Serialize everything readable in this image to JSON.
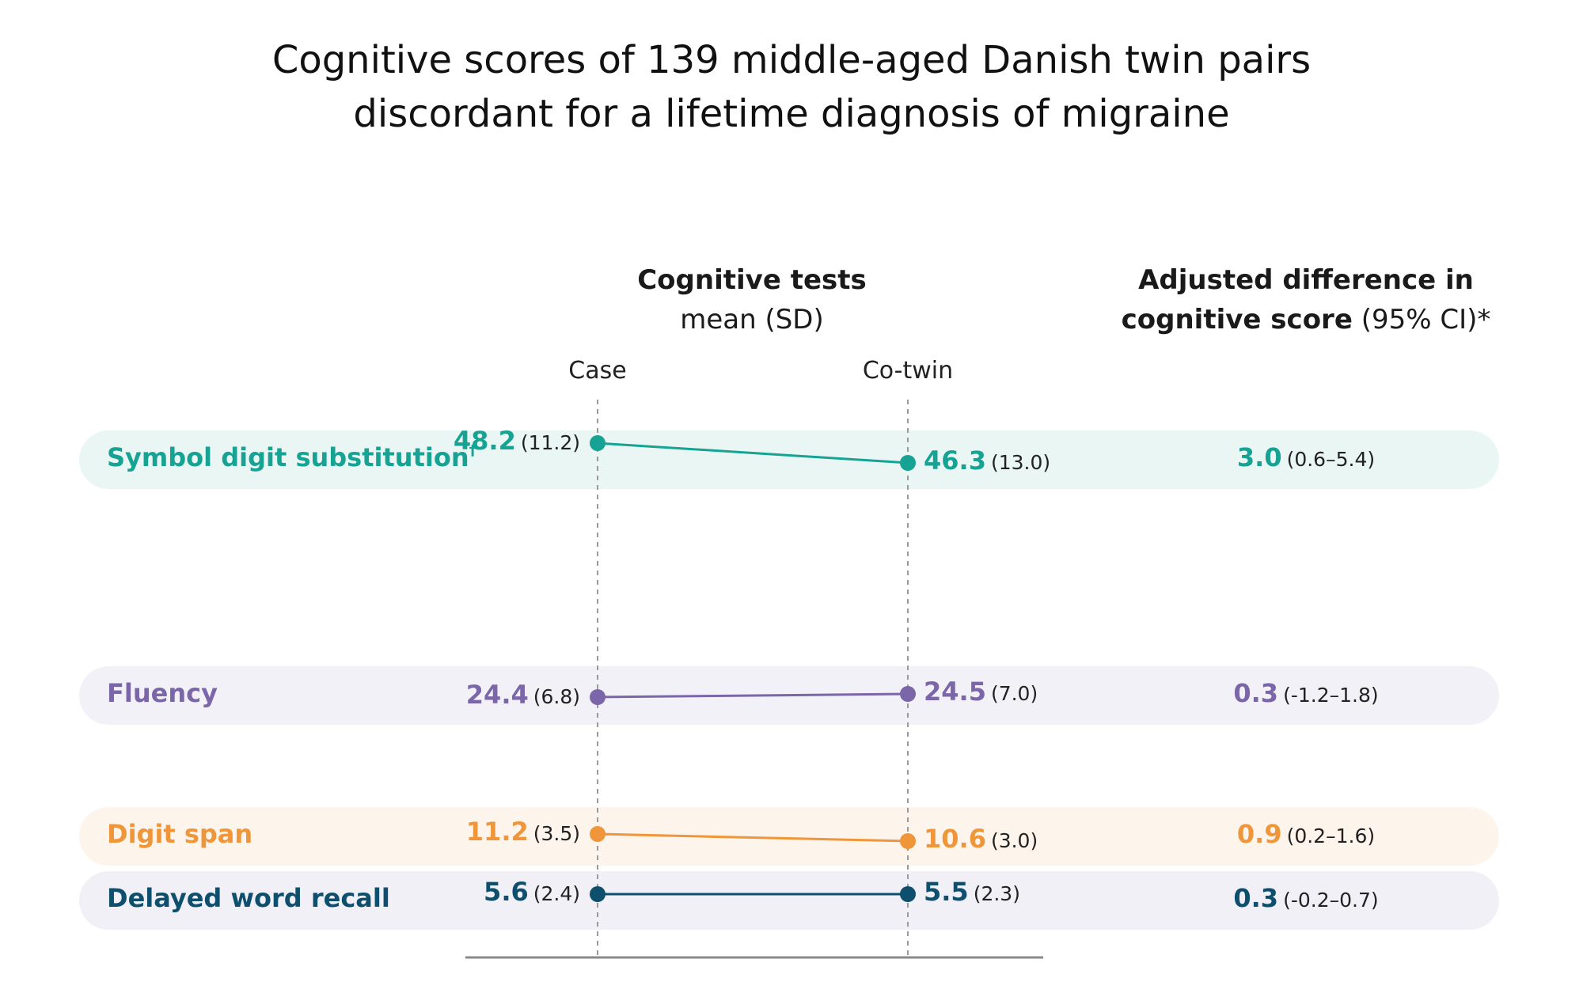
{
  "title": {
    "line1": "Cognitive scores of 139 middle-aged Danish twin pairs",
    "line2": "discordant for a lifetime diagnosis of migraine"
  },
  "headers": {
    "tests_title": "Cognitive tests",
    "tests_sub": "mean (SD)",
    "diff_title_line1": "Adjusted difference in",
    "diff_title_line2_bold": "cognitive score",
    "diff_title_line2_rest": " (95% CI)*",
    "case": "Case",
    "cotwin": "Co-twin"
  },
  "chart_data": {
    "type": "dumbbell",
    "title": "Cognitive scores of 139 middle-aged Danish twin pairs discordant for a lifetime diagnosis of migraine",
    "groups": [
      "Case",
      "Co-twin"
    ],
    "rows": [
      {
        "name": "Symbol digit substitution",
        "marker": "†",
        "color": "#17a393",
        "band": "#eaf6f4",
        "case": {
          "mean": "48.2",
          "sd": "(11.2)"
        },
        "cotwin": {
          "mean": "46.3",
          "sd": "(13.0)"
        },
        "diff": {
          "value": "3.0",
          "ci": "(0.6–5.4)"
        }
      },
      {
        "name": "Fluency",
        "marker": "",
        "color": "#7a66a8",
        "band": "#f3f1f8",
        "case": {
          "mean": "24.4",
          "sd": "(6.8)"
        },
        "cotwin": {
          "mean": "24.5",
          "sd": "(7.0)"
        },
        "diff": {
          "value": "0.3",
          "ci": "(-1.2–1.8)"
        }
      },
      {
        "name": "Digit span",
        "marker": "",
        "color": "#f0963a",
        "band": "#fdf4ec",
        "case": {
          "mean": "11.2",
          "sd": "(3.5)"
        },
        "cotwin": {
          "mean": "10.6",
          "sd": "(3.0)"
        },
        "diff": {
          "value": "0.9",
          "ci": "(0.2–1.6)"
        }
      },
      {
        "name": "Delayed word recall",
        "marker": "",
        "color": "#0e4f6e",
        "band": "#f1f0f7",
        "case": {
          "mean": "5.6",
          "sd": "(2.4)"
        },
        "cotwin": {
          "mean": "5.5",
          "sd": "(2.3)"
        },
        "diff": {
          "value": "0.3",
          "ci": "(-0.2–0.7)"
        }
      }
    ]
  }
}
